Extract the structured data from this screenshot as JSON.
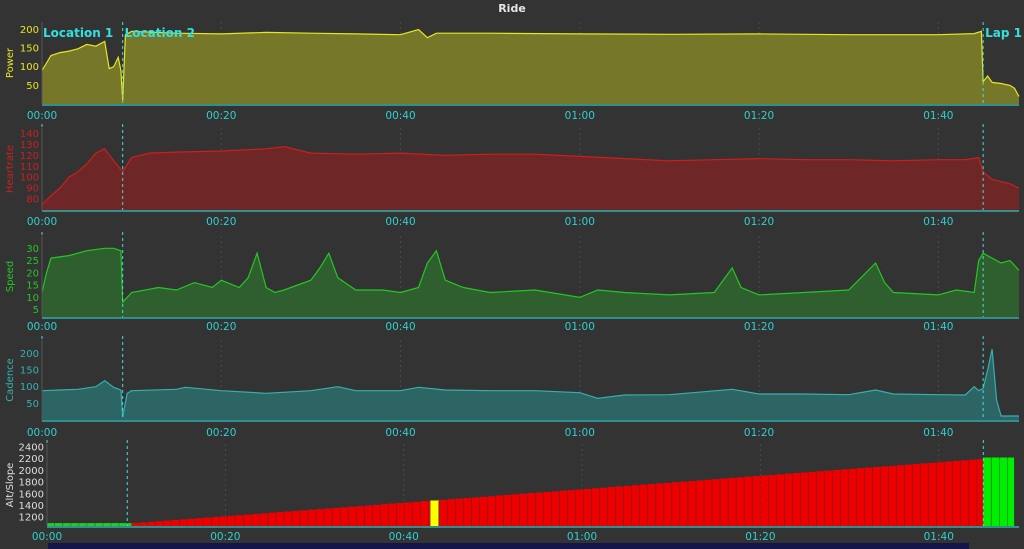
{
  "title": "Ride",
  "chart_data": {
    "type": "area",
    "x_unit": "elapsed time (h:mm)",
    "markers": [
      {
        "label": "Location 1",
        "t": 0
      },
      {
        "label": "Location 2",
        "t": 9
      },
      {
        "label": "Lap 1",
        "t": 105
      }
    ],
    "xticks": [
      "00:00",
      "00:20",
      "00:40",
      "01:00",
      "01:20",
      "01:40"
    ],
    "xtick_minutes": [
      0,
      20,
      40,
      60,
      80,
      100
    ],
    "panels": [
      {
        "ylabel": "Power",
        "color": "#e6e622",
        "fill": "#77772a",
        "ylim": [
          0,
          220
        ],
        "yticks": [
          50,
          100,
          150,
          200
        ],
        "series": {
          "t": [
            0,
            1,
            2,
            3,
            4,
            5,
            6,
            7,
            7.5,
            8,
            8.5,
            8.8,
            9,
            9.3,
            10,
            15,
            20,
            25,
            30,
            35,
            40,
            42,
            43,
            44,
            50,
            60,
            70,
            80,
            90,
            100,
            104,
            104.8,
            105,
            105.5,
            106,
            107,
            108,
            108.5,
            109
          ],
          "v": [
            90,
            130,
            138,
            142,
            148,
            160,
            155,
            168,
            95,
            100,
            125,
            90,
            10,
            185,
            195,
            190,
            188,
            192,
            190,
            188,
            186,
            200,
            178,
            190,
            190,
            188,
            187,
            188,
            186,
            186,
            189,
            195,
            60,
            75,
            58,
            55,
            50,
            42,
            20
          ]
        }
      },
      {
        "ylabel": "Heartrate",
        "color": "#cc1f1f",
        "fill": "#6e2626",
        "ylim": [
          70,
          145
        ],
        "yticks": [
          80,
          90,
          100,
          110,
          120,
          130,
          140
        ],
        "series": {
          "t": [
            0,
            1,
            2,
            3,
            4,
            5,
            6,
            7,
            8,
            9,
            10,
            12,
            15,
            20,
            25,
            27,
            30,
            35,
            40,
            45,
            50,
            55,
            60,
            65,
            70,
            75,
            80,
            85,
            90,
            95,
            100,
            103,
            104.5,
            105,
            106,
            107,
            108,
            109
          ],
          "v": [
            75,
            83,
            90,
            100,
            105,
            112,
            122,
            126,
            115,
            105,
            118,
            122,
            123,
            124,
            126,
            128,
            122,
            121,
            122,
            120,
            121,
            121,
            119,
            117,
            115,
            116,
            117,
            116,
            116,
            115,
            116,
            116,
            118,
            105,
            98,
            96,
            94,
            90
          ]
        }
      },
      {
        "ylabel": "Speed",
        "color": "#22c822",
        "fill": "#2f5f2f",
        "ylim": [
          2,
          35
        ],
        "yticks": [
          5,
          10,
          15,
          20,
          25,
          30
        ],
        "series": {
          "t": [
            0,
            0.5,
            1,
            3,
            5,
            7,
            8,
            8.8,
            9,
            10,
            13,
            15,
            17,
            19,
            20,
            22,
            23,
            24,
            25,
            26,
            27,
            30,
            31,
            32,
            33,
            35,
            38,
            40,
            42,
            43,
            44,
            45,
            47,
            50,
            55,
            60,
            62,
            65,
            70,
            75,
            77,
            78,
            80,
            85,
            90,
            93,
            94,
            95,
            100,
            102,
            104,
            104.5,
            105,
            106,
            107,
            108,
            109
          ],
          "v": [
            12,
            20,
            26,
            27,
            29,
            30,
            30,
            29,
            8,
            12,
            14,
            13,
            16,
            14,
            17,
            14,
            18,
            28,
            14,
            12,
            13,
            17,
            22,
            28,
            18,
            13,
            13,
            12,
            14,
            24,
            29,
            17,
            14,
            12,
            13,
            10,
            13,
            12,
            11,
            12,
            22,
            14,
            11,
            12,
            13,
            24,
            16,
            12,
            11,
            13,
            12,
            25,
            28,
            26,
            24,
            25,
            21
          ]
        }
      },
      {
        "ylabel": "Cadence",
        "color": "#35b0b0",
        "fill": "#2d6464",
        "ylim": [
          0,
          240
        ],
        "yticks": [
          50,
          100,
          150,
          200
        ],
        "series": {
          "t": [
            0,
            2,
            4,
            6,
            7,
            8,
            8.8,
            9,
            9.5,
            10,
            15,
            16,
            20,
            25,
            30,
            33,
            35,
            40,
            42,
            45,
            50,
            55,
            60,
            62,
            65,
            70,
            77,
            80,
            85,
            90,
            93,
            95,
            100,
            103,
            104,
            104.5,
            105,
            105.5,
            106,
            106.5,
            107,
            108,
            109
          ],
          "v": [
            88,
            90,
            92,
            100,
            118,
            98,
            90,
            10,
            80,
            88,
            92,
            98,
            88,
            80,
            88,
            100,
            88,
            88,
            98,
            90,
            88,
            88,
            82,
            65,
            75,
            76,
            92,
            78,
            78,
            76,
            90,
            78,
            76,
            75,
            100,
            88,
            95,
            150,
            212,
            60,
            12,
            12,
            12
          ]
        }
      },
      {
        "ylabel": "Alt/Slope",
        "ylim": [
          1050,
          2450
        ],
        "yticks": [
          1200,
          1400,
          1600,
          1800,
          2000,
          2200,
          2400
        ],
        "altitude": {
          "t": [
            0,
            9.5,
            105
          ],
          "v": [
            1100,
            1100,
            2200
          ]
        },
        "slope_segments": [
          {
            "t0": 0,
            "t1": 9.5,
            "color": "#20d020"
          },
          {
            "t0": 9.5,
            "t1": 43,
            "color": "#ee0000"
          },
          {
            "t0": 43,
            "t1": 44,
            "color": "#ffff00"
          },
          {
            "t0": 44,
            "t1": 105,
            "color": "#ee0000"
          },
          {
            "t0": 105,
            "t1": 108.5,
            "color": "#00ee00"
          }
        ]
      }
    ]
  }
}
